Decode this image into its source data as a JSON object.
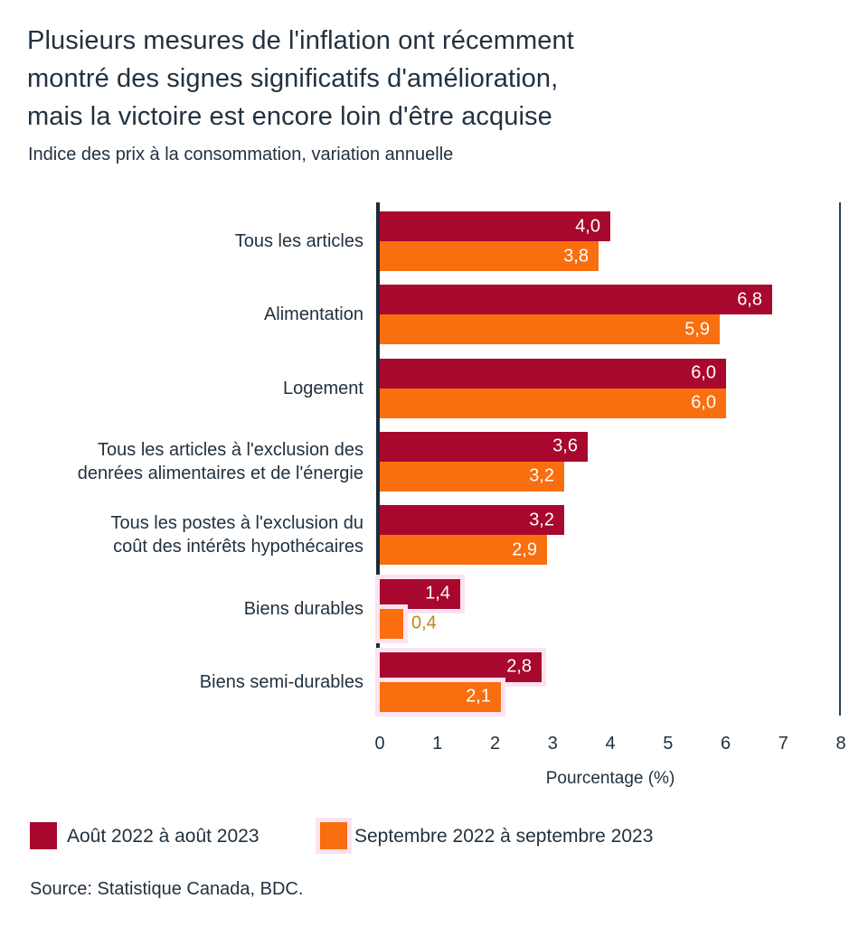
{
  "header": {
    "title_lines": [
      "Plusieurs mesures de l'inflation ont récemment",
      "montré des signes significatifs d'amélioration,",
      "mais la victoire est encore loin d'être acquise"
    ],
    "subtitle": "Indice des prix à la consommation, variation annuelle"
  },
  "chart_data": {
    "type": "bar",
    "orientation": "horizontal",
    "categories": [
      "Tous les articles",
      "Alimentation",
      "Logement",
      "Tous les articles à l'exclusion des\ndenrées alimentaires et de l'énergie",
      "Tous les postes à l'exclusion du\ncoût des intérêts hypothécaires",
      "Biens durables",
      "Biens semi-durables"
    ],
    "series": [
      {
        "name": "Août 2022 à août 2023",
        "color": "#A8082D",
        "values": [
          4.0,
          6.8,
          6.0,
          3.6,
          3.2,
          1.4,
          2.8
        ]
      },
      {
        "name": "Septembre 2022 à septembre 2023",
        "color": "#F96E0E",
        "values": [
          3.8,
          5.9,
          6.0,
          3.2,
          2.9,
          0.4,
          2.1
        ]
      }
    ],
    "value_labels": [
      [
        "4,0",
        "6,8",
        "6,0",
        "3,6",
        "3,2",
        "1,4",
        "2,8"
      ],
      [
        "3,8",
        "5,9",
        "6,0",
        "3,2",
        "2,9",
        "0,4",
        "2,1"
      ]
    ],
    "xlabel": "Pourcentage (%)",
    "xlim": [
      0,
      8
    ],
    "ticks": [
      "0",
      "1",
      "2",
      "3",
      "4",
      "5",
      "6",
      "7",
      "8"
    ],
    "grid": false,
    "legend_position": "bottom",
    "value_label_color": "#FFFFFF",
    "small_value_label_color": "#BC8912",
    "axis_color": "#1C2B3A"
  },
  "source": "Source: Statistique Canada, BDC."
}
